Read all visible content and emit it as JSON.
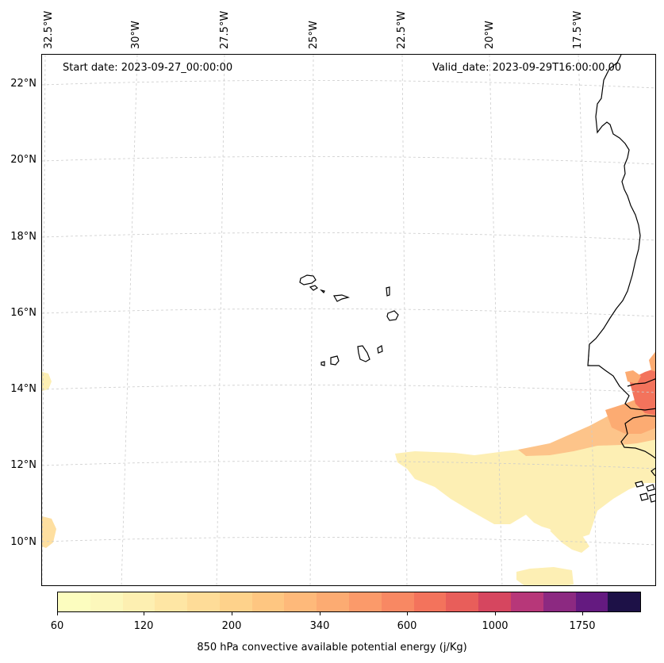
{
  "map": {
    "start_date": "Start date: 2023-09-27_00:00:00",
    "valid_date": "Valid_date: 2023-09-29T16:00:00.00",
    "lon_labels": [
      "32.5°W",
      "30°W",
      "27.5°W",
      "25°W",
      "22.5°W",
      "20°W",
      "17.5°W"
    ],
    "lat_labels": [
      "22°N",
      "20°N",
      "18°N",
      "16°N",
      "14°N",
      "12°N",
      "10°N"
    ],
    "coastline_color": "#000000",
    "gridline_color": "#cccccc"
  },
  "colorbar": {
    "label": "850 hPa convective available potential energy (j/Kg)",
    "tick_labels": [
      "60",
      "120",
      "200",
      "340",
      "600",
      "1000",
      "1750"
    ],
    "colors": [
      "#fcfdbf",
      "#fcf7bb",
      "#fdefb1",
      "#fee6a4",
      "#fedc98",
      "#fed28b",
      "#fec681",
      "#feb97a",
      "#fcab72",
      "#fb9a6a",
      "#f88863",
      "#f3735c",
      "#e85e5a",
      "#d6465f",
      "#b73779",
      "#8c2981",
      "#641a80",
      "#1d1147"
    ]
  }
}
